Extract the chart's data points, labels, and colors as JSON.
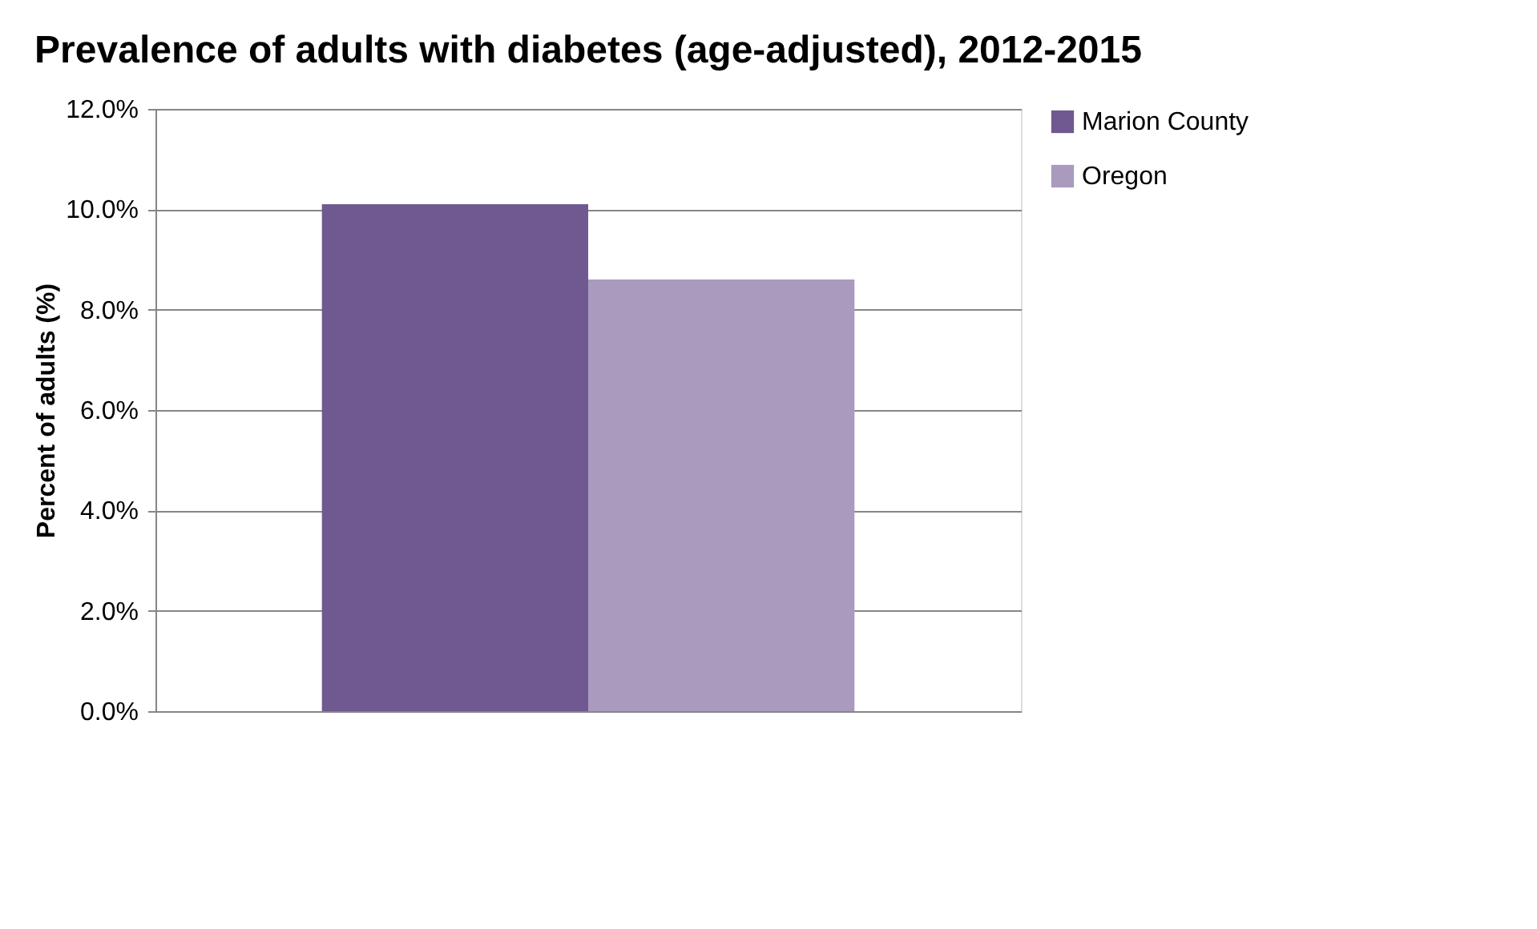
{
  "chart_data": {
    "type": "bar",
    "title": "Prevalence of adults with diabetes (age-adjusted), 2012-2015",
    "ylabel": "Percent of adults (%)",
    "categories": [
      null
    ],
    "series": [
      {
        "name": "Marion County",
        "color": "#705990",
        "values": [
          10.1
        ]
      },
      {
        "name": "Oregon",
        "color": "#a99abe",
        "values": [
          8.6
        ]
      }
    ],
    "ylim": [
      0,
      12
    ],
    "yticks": [
      {
        "value": 0,
        "label": "0.0%"
      },
      {
        "value": 2,
        "label": "2.0%"
      },
      {
        "value": 4,
        "label": "4.0%"
      },
      {
        "value": 6,
        "label": "6.0%"
      },
      {
        "value": 8,
        "label": "8.0%"
      },
      {
        "value": 10,
        "label": "10.0%"
      },
      {
        "value": 12,
        "label": "12.0%"
      }
    ],
    "grid": "y",
    "legend": "right"
  }
}
